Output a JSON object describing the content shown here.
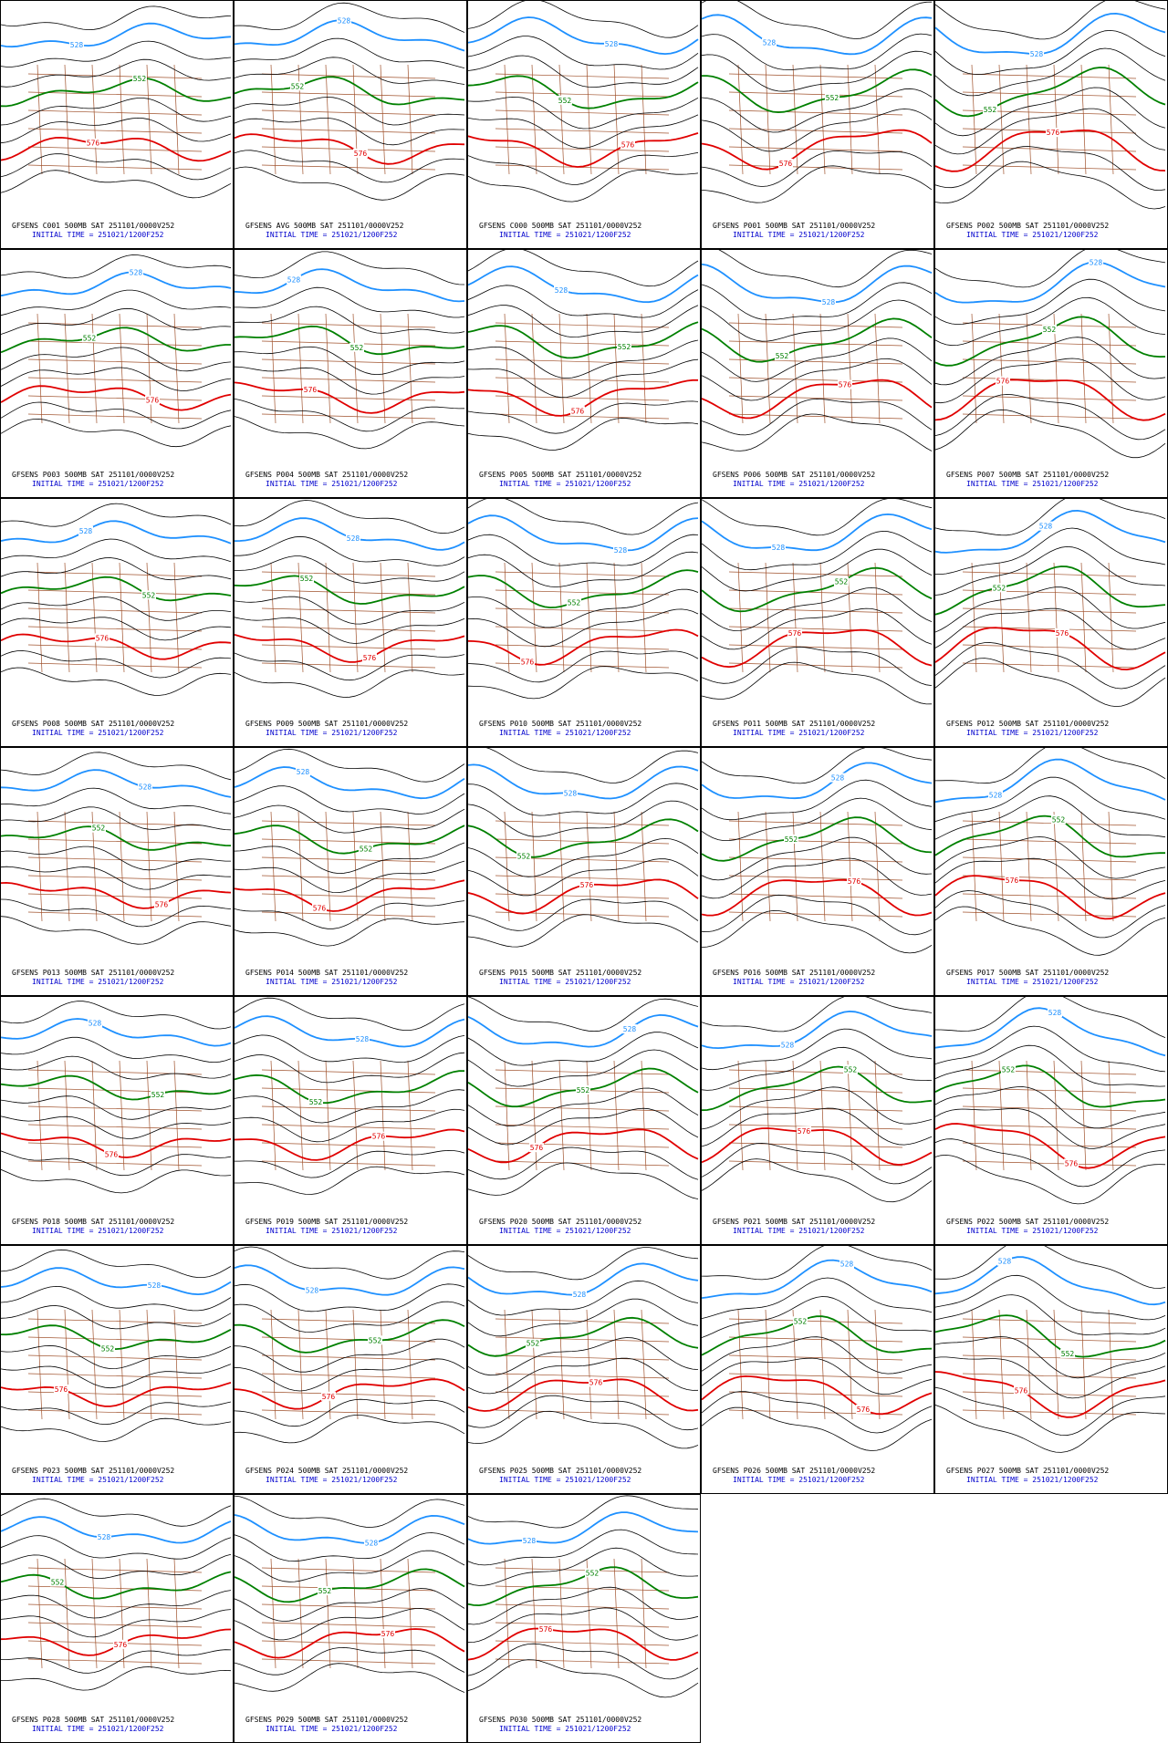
{
  "panels": [
    {
      "label": "GFSENS C001 500MB SAT 251101/0000V252",
      "init": "INITIAL TIME = 251021/1200F252",
      "contours": [
        "528",
        "552",
        "576"
      ]
    },
    {
      "label": "GFSENS AVG 500MB SAT 251101/0000V252",
      "init": "INITIAL TIME = 251021/1200F252",
      "contours": [
        "528",
        "552",
        "576"
      ]
    },
    {
      "label": "GFSENS C000 500MB SAT 251101/0000V252",
      "init": "INITIAL TIME = 251021/1200F252",
      "contours": [
        "528",
        "552",
        "576"
      ]
    },
    {
      "label": "GFSENS P001 500MB SAT 251101/0000V252",
      "init": "INITIAL TIME = 251021/1200F252",
      "contours": [
        "528",
        "552",
        "576"
      ]
    },
    {
      "label": "GFSENS P002 500MB SAT 251101/0000V252",
      "init": "INITIAL TIME = 251021/1200F252",
      "contours": [
        "528",
        "552",
        "576"
      ]
    },
    {
      "label": "GFSENS P003 500MB SAT 251101/0000V252",
      "init": "INITIAL TIME = 251021/1200F252",
      "contours": [
        "528",
        "552",
        "576"
      ]
    },
    {
      "label": "GFSENS P004 500MB SAT 251101/0000V252",
      "init": "INITIAL TIME = 251021/1200F252",
      "contours": [
        "528",
        "552",
        "576"
      ]
    },
    {
      "label": "GFSENS P005 500MB SAT 251101/0000V252",
      "init": "INITIAL TIME = 251021/1200F252",
      "contours": [
        "528",
        "552",
        "576"
      ]
    },
    {
      "label": "GFSENS P006 500MB SAT 251101/0000V252",
      "init": "INITIAL TIME = 251021/1200F252",
      "contours": [
        "528",
        "552",
        "576"
      ]
    },
    {
      "label": "GFSENS P007 500MB SAT 251101/0000V252",
      "init": "INITIAL TIME = 251021/1200F252",
      "contours": [
        "528",
        "552",
        "576"
      ]
    },
    {
      "label": "GFSENS P008 500MB SAT 251101/0000V252",
      "init": "INITIAL TIME = 251021/1200F252",
      "contours": [
        "528",
        "552",
        "576"
      ]
    },
    {
      "label": "GFSENS P009 500MB SAT 251101/0000V252",
      "init": "INITIAL TIME = 251021/1200F252",
      "contours": [
        "528",
        "552",
        "576"
      ]
    },
    {
      "label": "GFSENS P010 500MB SAT 251101/0000V252",
      "init": "INITIAL TIME = 251021/1200F252",
      "contours": [
        "528",
        "552",
        "576"
      ]
    },
    {
      "label": "GFSENS P011 500MB SAT 251101/0000V252",
      "init": "INITIAL TIME = 251021/1200F252",
      "contours": [
        "528",
        "552",
        "576"
      ]
    },
    {
      "label": "GFSENS P012 500MB SAT 251101/0000V252",
      "init": "INITIAL TIME = 251021/1200F252",
      "contours": [
        "528",
        "552",
        "576"
      ]
    },
    {
      "label": "GFSENS P013 500MB SAT 251101/0000V252",
      "init": "INITIAL TIME = 251021/1200F252",
      "contours": [
        "528",
        "552",
        "576"
      ]
    },
    {
      "label": "GFSENS P014 500MB SAT 251101/0000V252",
      "init": "INITIAL TIME = 251021/1200F252",
      "contours": [
        "528",
        "552",
        "576"
      ]
    },
    {
      "label": "GFSENS P015 500MB SAT 251101/0000V252",
      "init": "INITIAL TIME = 251021/1200F252",
      "contours": [
        "528",
        "552",
        "576"
      ]
    },
    {
      "label": "GFSENS P016 500MB SAT 251101/0000V252",
      "init": "INITIAL TIME = 251021/1200F252",
      "contours": [
        "528",
        "552",
        "576"
      ]
    },
    {
      "label": "GFSENS P017 500MB SAT 251101/0000V252",
      "init": "INITIAL TIME = 251021/1200F252",
      "contours": [
        "528",
        "552",
        "576"
      ]
    },
    {
      "label": "GFSENS P018 500MB SAT 251101/0000V252",
      "init": "INITIAL TIME = 251021/1200F252",
      "contours": [
        "528",
        "552",
        "576"
      ]
    },
    {
      "label": "GFSENS P019 500MB SAT 251101/0000V252",
      "init": "INITIAL TIME = 251021/1200F252",
      "contours": [
        "528",
        "552",
        "576"
      ]
    },
    {
      "label": "GFSENS P020 500MB SAT 251101/0000V252",
      "init": "INITIAL TIME = 251021/1200F252",
      "contours": [
        "528",
        "552",
        "576"
      ]
    },
    {
      "label": "GFSENS P021 500MB SAT 251101/0000V252",
      "init": "INITIAL TIME = 251021/1200F252",
      "contours": [
        "528",
        "552",
        "576"
      ]
    },
    {
      "label": "GFSENS P022 500MB SAT 251101/0000V252",
      "init": "INITIAL TIME = 251021/1200F252",
      "contours": [
        "528",
        "552",
        "576"
      ]
    },
    {
      "label": "GFSENS P023 500MB SAT 251101/0000V252",
      "init": "INITIAL TIME = 251021/1200F252",
      "contours": [
        "528",
        "552",
        "576"
      ]
    },
    {
      "label": "GFSENS P024 500MB SAT 251101/0000V252",
      "init": "INITIAL TIME = 251021/1200F252",
      "contours": [
        "528",
        "552",
        "576"
      ]
    },
    {
      "label": "GFSENS P025 500MB SAT 251101/0000V252",
      "init": "INITIAL TIME = 251021/1200F252",
      "contours": [
        "528",
        "552",
        "576"
      ]
    },
    {
      "label": "GFSENS P026 500MB SAT 251101/0000V252",
      "init": "INITIAL TIME = 251021/1200F252",
      "contours": [
        "528",
        "552",
        "576"
      ]
    },
    {
      "label": "GFSENS P027 500MB SAT 251101/0000V252",
      "init": "INITIAL TIME = 251021/1200F252",
      "contours": [
        "528",
        "552",
        "576"
      ]
    },
    {
      "label": "GFSENS P028 500MB SAT 251101/0000V252",
      "init": "INITIAL TIME = 251021/1200F252",
      "contours": [
        "528",
        "552",
        "576"
      ]
    },
    {
      "label": "GFSENS P029 500MB SAT 251101/0000V252",
      "init": "INITIAL TIME = 251021/1200F252",
      "contours": [
        "528",
        "552",
        "576"
      ]
    },
    {
      "label": "GFSENS P030 500MB SAT 251101/0000V252",
      "init": "INITIAL TIME = 251021/1200F252",
      "contours": [
        "528",
        "552",
        "576"
      ]
    }
  ]
}
